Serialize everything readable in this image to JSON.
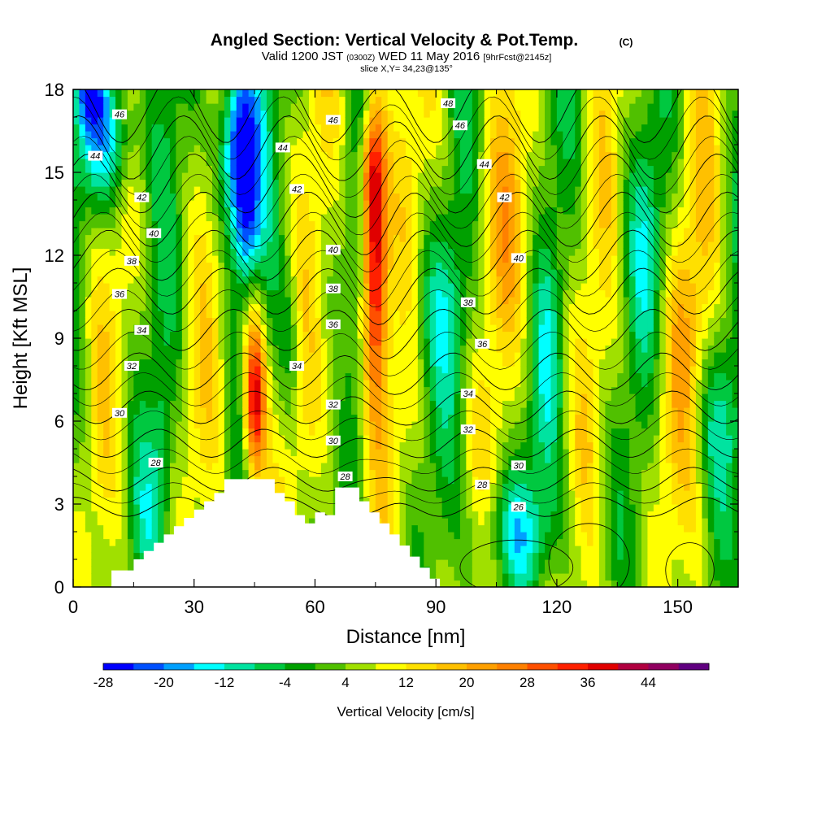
{
  "chart_data": {
    "type": "heatmap",
    "title": "Angled Section: Vertical Velocity & Pot.Temp.",
    "title_unit": "(C)",
    "subtitle": {
      "prefix": "Valid 1200 JST",
      "utc": "(0300Z)",
      "date": "WED 11 May 2016",
      "fcst": "[9hrFcst@2145z]"
    },
    "slice": "slice X,Y= 34,23@135°",
    "xlabel": "Distance [nm]",
    "ylabel": "Height [Kft MSL]",
    "xlim": [
      0,
      165
    ],
    "ylim": [
      0,
      18
    ],
    "xticks": [
      0,
      30,
      60,
      90,
      120,
      150
    ],
    "yticks": [
      0,
      3,
      6,
      9,
      12,
      15,
      18
    ],
    "colorbar": {
      "label": "Vertical Velocity [cm/s]",
      "ticks": [
        "-28",
        "-20",
        "-12",
        "-4",
        "4",
        "12",
        "20",
        "28",
        "36",
        "44"
      ],
      "bins": [
        {
          "lo": -28,
          "hi": -24,
          "color": "#0000ff"
        },
        {
          "lo": -24,
          "hi": -20,
          "color": "#0050ff"
        },
        {
          "lo": -20,
          "hi": -16,
          "color": "#00a0ff"
        },
        {
          "lo": -16,
          "hi": -12,
          "color": "#00ffff"
        },
        {
          "lo": -12,
          "hi": -8,
          "color": "#00e3a0"
        },
        {
          "lo": -8,
          "hi": -4,
          "color": "#00c840"
        },
        {
          "lo": -4,
          "hi": 0,
          "color": "#00a000"
        },
        {
          "lo": 0,
          "hi": 4,
          "color": "#50c000"
        },
        {
          "lo": 4,
          "hi": 8,
          "color": "#a0e000"
        },
        {
          "lo": 8,
          "hi": 12,
          "color": "#ffff00"
        },
        {
          "lo": 12,
          "hi": 16,
          "color": "#ffe000"
        },
        {
          "lo": 16,
          "hi": 20,
          "color": "#ffc000"
        },
        {
          "lo": 20,
          "hi": 24,
          "color": "#ffa000"
        },
        {
          "lo": 24,
          "hi": 28,
          "color": "#ff8000"
        },
        {
          "lo": 28,
          "hi": 32,
          "color": "#ff5000"
        },
        {
          "lo": 32,
          "hi": 36,
          "color": "#ff2000"
        },
        {
          "lo": 36,
          "hi": 40,
          "color": "#e00000"
        },
        {
          "lo": 40,
          "hi": 44,
          "color": "#b00040"
        },
        {
          "lo": 44,
          "hi": 48,
          "color": "#900060"
        },
        {
          "lo": 48,
          "hi": 52,
          "color": "#600080"
        }
      ]
    },
    "theta_contours": {
      "levels": [
        26,
        28,
        30,
        32,
        34,
        36,
        38,
        40,
        42,
        44,
        46,
        48
      ],
      "labels": [
        {
          "text": "46",
          "x": 11.5,
          "y": 17.1
        },
        {
          "text": "44",
          "x": 5.5,
          "y": 15.6
        },
        {
          "text": "42",
          "x": 17,
          "y": 14.1
        },
        {
          "text": "40",
          "x": 20,
          "y": 12.8
        },
        {
          "text": "38",
          "x": 14.5,
          "y": 11.8
        },
        {
          "text": "36",
          "x": 11.5,
          "y": 10.6
        },
        {
          "text": "34",
          "x": 17,
          "y": 9.3
        },
        {
          "text": "32",
          "x": 14.5,
          "y": 8.0
        },
        {
          "text": "30",
          "x": 11.5,
          "y": 6.3
        },
        {
          "text": "28",
          "x": 20.5,
          "y": 4.5
        },
        {
          "text": "44",
          "x": 52,
          "y": 15.9
        },
        {
          "text": "42",
          "x": 55.5,
          "y": 14.4
        },
        {
          "text": "46",
          "x": 64.5,
          "y": 16.9
        },
        {
          "text": "40",
          "x": 64.5,
          "y": 12.2
        },
        {
          "text": "38",
          "x": 64.5,
          "y": 10.8
        },
        {
          "text": "36",
          "x": 64.5,
          "y": 9.5
        },
        {
          "text": "34",
          "x": 55.5,
          "y": 8.0
        },
        {
          "text": "32",
          "x": 64.5,
          "y": 6.6
        },
        {
          "text": "30",
          "x": 64.5,
          "y": 5.3
        },
        {
          "text": "28",
          "x": 67.5,
          "y": 4.0
        },
        {
          "text": "48",
          "x": 93,
          "y": 17.5
        },
        {
          "text": "46",
          "x": 96,
          "y": 16.7
        },
        {
          "text": "44",
          "x": 102,
          "y": 15.3
        },
        {
          "text": "42",
          "x": 107,
          "y": 14.1
        },
        {
          "text": "40",
          "x": 110.5,
          "y": 11.9
        },
        {
          "text": "38",
          "x": 98,
          "y": 10.3
        },
        {
          "text": "36",
          "x": 101.5,
          "y": 8.8
        },
        {
          "text": "34",
          "x": 98,
          "y": 7.0
        },
        {
          "text": "32",
          "x": 98,
          "y": 5.7
        },
        {
          "text": "30",
          "x": 110.5,
          "y": 4.4
        },
        {
          "text": "28",
          "x": 101.5,
          "y": 3.7
        },
        {
          "text": "26",
          "x": 110.5,
          "y": 2.9
        }
      ]
    },
    "terrain_profile": [
      [
        0,
        0
      ],
      [
        9.5,
        0
      ],
      [
        9.5,
        0.6
      ],
      [
        15,
        0.6
      ],
      [
        15,
        1.0
      ],
      [
        17.5,
        1.0
      ],
      [
        17.5,
        1.3
      ],
      [
        20,
        1.3
      ],
      [
        20,
        1.6
      ],
      [
        22.5,
        1.6
      ],
      [
        22.5,
        1.9
      ],
      [
        25,
        1.9
      ],
      [
        25,
        2.2
      ],
      [
        27.5,
        2.2
      ],
      [
        27.5,
        2.5
      ],
      [
        30,
        2.5
      ],
      [
        30,
        2.8
      ],
      [
        32.5,
        2.8
      ],
      [
        32.5,
        3.1
      ],
      [
        35,
        3.1
      ],
      [
        35,
        3.4
      ],
      [
        37.5,
        3.4
      ],
      [
        37.5,
        3.9
      ],
      [
        50,
        3.9
      ],
      [
        50,
        3.4
      ],
      [
        52.5,
        3.4
      ],
      [
        52.5,
        3.1
      ],
      [
        55,
        3.1
      ],
      [
        55,
        2.6
      ],
      [
        57.5,
        2.6
      ],
      [
        57.5,
        2.3
      ],
      [
        60,
        2.3
      ],
      [
        60,
        2.7
      ],
      [
        62.5,
        2.7
      ],
      [
        62.5,
        2.6
      ],
      [
        65,
        2.6
      ],
      [
        65,
        3.6
      ],
      [
        71,
        3.6
      ],
      [
        71,
        3.1
      ],
      [
        73.5,
        3.1
      ],
      [
        73.5,
        2.7
      ],
      [
        76,
        2.7
      ],
      [
        76,
        2.3
      ],
      [
        78.5,
        2.3
      ],
      [
        78.5,
        1.9
      ],
      [
        81,
        1.9
      ],
      [
        81,
        1.5
      ],
      [
        83.5,
        1.5
      ],
      [
        83.5,
        1.1
      ],
      [
        86,
        1.1
      ],
      [
        86,
        0.7
      ],
      [
        88.5,
        0.7
      ],
      [
        88.5,
        0.3
      ],
      [
        91,
        0.3
      ],
      [
        91,
        0
      ]
    ]
  }
}
